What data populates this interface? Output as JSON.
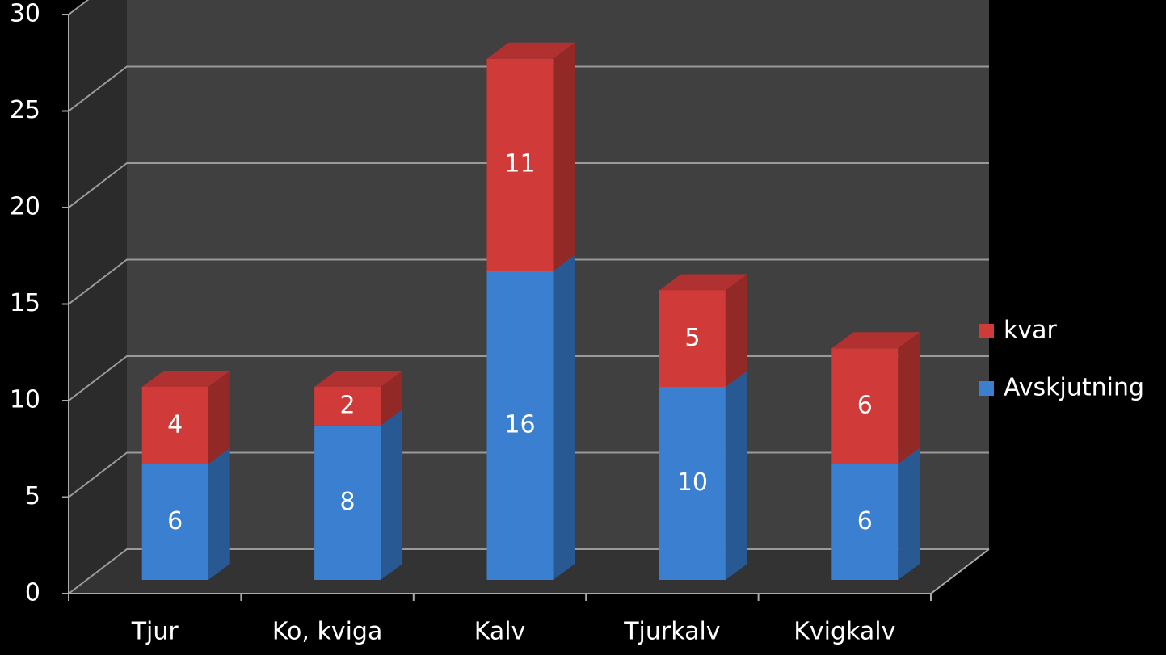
{
  "chart_data": {
    "type": "bar3d_stacked",
    "categories": [
      "Tjur",
      "Ko, kviga",
      "Kalv",
      "Tjurkalv",
      "Kvigkalv"
    ],
    "series": [
      {
        "name": "Avskjutning",
        "color": "#3b7fd0",
        "values": [
          6,
          8,
          16,
          10,
          6
        ]
      },
      {
        "name": "kvar",
        "color": "#d03a38",
        "values": [
          4,
          2,
          11,
          5,
          6
        ]
      }
    ],
    "ylim": [
      0,
      30
    ],
    "yticks": [
      0,
      5,
      10,
      15,
      20,
      25,
      30
    ],
    "grid": true,
    "legend": "right"
  }
}
